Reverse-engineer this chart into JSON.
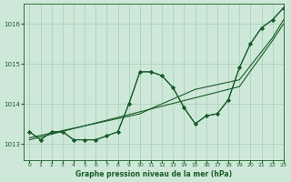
{
  "background_color": "#cde8d8",
  "grid_color": "#a8ccba",
  "line_color": "#1a5c28",
  "xlabel": "Graphe pression niveau de la mer (hPa)",
  "xlim": [
    -0.5,
    23
  ],
  "ylim": [
    1012.6,
    1016.5
  ],
  "yticks": [
    1013,
    1014,
    1015,
    1016
  ],
  "xticks": [
    0,
    1,
    2,
    3,
    4,
    5,
    6,
    7,
    8,
    9,
    10,
    11,
    12,
    13,
    14,
    15,
    16,
    17,
    18,
    19,
    20,
    21,
    22,
    23
  ],
  "series_actual": [
    [
      1013.3,
      1013.1,
      1013.3,
      1013.3,
      1013.1,
      1013.1,
      1013.1,
      1013.2,
      1013.3,
      1014.0,
      1014.8,
      1014.8,
      1014.7,
      1014.4,
      1013.9,
      1013.5,
      1013.7,
      1013.75,
      1014.1,
      1014.9,
      1015.5,
      1015.9,
      1016.1,
      1016.4
    ],
    [
      1013.3,
      1013.1,
      1013.3,
      1013.3,
      1013.1,
      1013.1,
      1013.1,
      1013.2,
      1013.3,
      1014.0,
      1014.8,
      1014.8,
      1014.7,
      1014.4,
      1013.9,
      1013.5,
      1013.7,
      1013.75,
      1014.1,
      1014.9,
      1015.5,
      1015.9,
      1016.1,
      1016.4
    ]
  ],
  "series_trend": [
    [
      1013.1,
      1013.17,
      1013.24,
      1013.31,
      1013.38,
      1013.45,
      1013.52,
      1013.59,
      1013.66,
      1013.73,
      1013.8,
      1013.87,
      1013.94,
      1014.01,
      1014.08,
      1014.15,
      1014.22,
      1014.29,
      1014.36,
      1014.43,
      1014.82,
      1015.2,
      1015.58,
      1016.0
    ],
    [
      1013.15,
      1013.21,
      1013.27,
      1013.33,
      1013.39,
      1013.45,
      1013.51,
      1013.57,
      1013.63,
      1013.69,
      1013.75,
      1013.88,
      1014.0,
      1014.12,
      1014.24,
      1014.36,
      1014.42,
      1014.48,
      1014.54,
      1014.6,
      1014.95,
      1015.3,
      1015.65,
      1016.1
    ]
  ]
}
